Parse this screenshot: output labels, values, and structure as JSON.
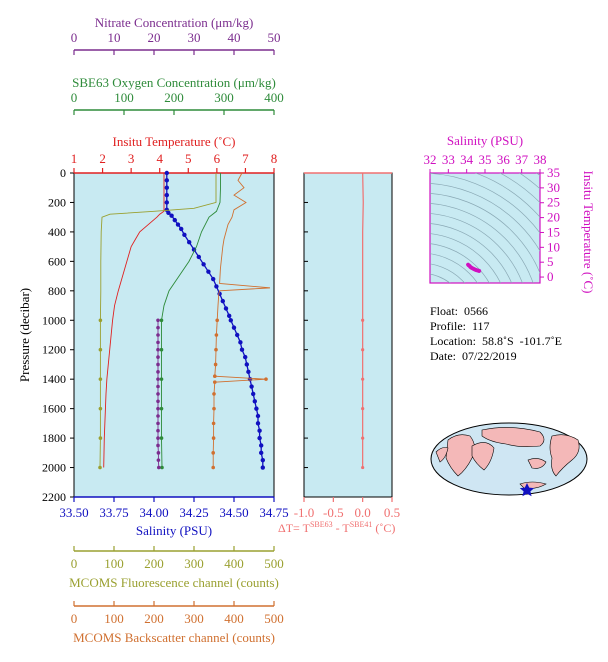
{
  "colors": {
    "nitrate": "#7b2d8e",
    "oxygen": "#2e8b3a",
    "temperature": "#e02020",
    "salinity": "#1010c0",
    "fluorescence": "#9aa030",
    "backscatter": "#d07030",
    "delta_t": "#f07070",
    "ts_axis": "#d010c0",
    "panel_bg": "#c8eaf2"
  },
  "meta": {
    "float": "Float:  0566",
    "profile": "Profile:  117",
    "location": "Location:  58.8˚S  -101.7˚E",
    "date": "Date:  07/22/2019"
  },
  "delta_label": {
    "prefix": "ΔT= T",
    "sup1": "SBE63",
    "mid": " - T",
    "sup2": "SBE41",
    "suffix": " (˚C)"
  },
  "chart_data": [
    {
      "type": "line",
      "title": "",
      "ylabel": "Pressure (decibar)",
      "ylim": [
        2200,
        0
      ],
      "y_ticks": [
        0,
        200,
        400,
        600,
        800,
        1000,
        1200,
        1400,
        1600,
        1800,
        2000,
        2200
      ],
      "axes": [
        {
          "key": "nitrate",
          "label": "Nitrate Concentration (μm/kg)",
          "range": [
            0,
            50
          ],
          "ticks": [
            0,
            10,
            20,
            30,
            40,
            50
          ],
          "position": "top"
        },
        {
          "key": "oxygen",
          "label": "SBE63 Oxygen Concentration (μm/kg)",
          "range": [
            0,
            400
          ],
          "ticks": [
            0,
            100,
            200,
            300,
            400
          ],
          "position": "top"
        },
        {
          "key": "temperature",
          "label": "Insitu Temperature (˚C)",
          "range": [
            1,
            8
          ],
          "ticks": [
            1,
            2,
            3,
            4,
            5,
            6,
            7,
            8
          ],
          "position": "top"
        },
        {
          "key": "salinity",
          "label": "Salinity (PSU)",
          "range": [
            33.5,
            34.75
          ],
          "ticks": [
            "33.50",
            "33.75",
            "34.00",
            "34.25",
            "34.50",
            "34.75"
          ],
          "position": "bottom"
        },
        {
          "key": "fluorescence",
          "label": "MCOMS Fluorescence channel (counts)",
          "range": [
            0,
            500
          ],
          "ticks": [
            0,
            100,
            200,
            300,
            400,
            500
          ],
          "position": "bottom"
        },
        {
          "key": "backscatter",
          "label": "MCOMS Backscatter channel (counts)",
          "range": [
            0,
            500
          ],
          "ticks": [
            0,
            100,
            200,
            300,
            400,
            500
          ],
          "position": "bottom"
        }
      ],
      "series": [
        {
          "axis": "salinity",
          "pressure": [
            0,
            50,
            100,
            150,
            200,
            250,
            270,
            290,
            320,
            350,
            380,
            420,
            470,
            520,
            570,
            620,
            670,
            720,
            770,
            820,
            870,
            920,
            970,
            1000,
            1050,
            1100,
            1150,
            1200,
            1250,
            1300,
            1350,
            1400,
            1450,
            1500,
            1550,
            1600,
            1650,
            1700,
            1750,
            1800,
            1850,
            1900,
            1950,
            2000
          ],
          "values": [
            34.08,
            34.08,
            34.08,
            34.08,
            34.08,
            34.08,
            34.09,
            34.11,
            34.13,
            34.15,
            34.17,
            34.19,
            34.22,
            34.25,
            34.28,
            34.31,
            34.34,
            34.37,
            34.39,
            34.41,
            34.43,
            34.45,
            34.47,
            34.48,
            34.5,
            34.52,
            34.54,
            34.55,
            34.57,
            34.58,
            34.59,
            34.6,
            34.61,
            34.62,
            34.63,
            34.64,
            34.65,
            34.65,
            34.66,
            34.66,
            34.67,
            34.67,
            34.68,
            34.68
          ]
        },
        {
          "axis": "temperature",
          "pressure": [
            0,
            100,
            200,
            260,
            280,
            300,
            350,
            400,
            450,
            500,
            600,
            700,
            800,
            900,
            1000,
            1100,
            1200,
            1300,
            1400,
            1500,
            1600,
            1700,
            1800,
            1900,
            2000
          ],
          "values": [
            4.15,
            4.15,
            4.15,
            4.15,
            4.0,
            3.9,
            3.6,
            3.3,
            3.15,
            3.0,
            2.85,
            2.7,
            2.55,
            2.42,
            2.35,
            2.3,
            2.25,
            2.2,
            2.15,
            2.12,
            2.1,
            2.08,
            2.06,
            2.05,
            2.04
          ]
        },
        {
          "axis": "oxygen",
          "pressure": [
            0,
            100,
            200,
            260,
            300,
            400,
            500,
            600,
            700,
            800,
            900,
            1000,
            1200,
            1400,
            1600,
            1800,
            2000
          ],
          "values": [
            293,
            293,
            292,
            285,
            270,
            255,
            245,
            230,
            210,
            190,
            180,
            175,
            175,
            175,
            175,
            175,
            176
          ]
        },
        {
          "axis": "nitrate",
          "pressure": [
            1000,
            1050,
            1100,
            1150,
            1200,
            1250,
            1300,
            1350,
            1400,
            1450,
            1500,
            1550,
            1600,
            1650,
            1700,
            1750,
            1800,
            1850,
            1900,
            1950,
            2000
          ],
          "values": [
            21,
            21,
            21,
            21,
            21,
            21,
            21,
            21,
            21,
            21,
            21,
            21,
            21,
            21,
            21,
            21,
            21,
            21,
            21.1,
            21.1,
            21.2
          ]
        },
        {
          "axis": "fluorescence",
          "pressure": [
            0,
            200,
            240,
            260,
            280,
            300,
            400,
            600,
            800,
            1000,
            1200,
            1400,
            1600,
            1800,
            2000
          ],
          "values": [
            355,
            355,
            300,
            200,
            90,
            70,
            68,
            67,
            67,
            66,
            66,
            66,
            66,
            66,
            65
          ]
        },
        {
          "axis": "backscatter",
          "pressure": [
            0,
            50,
            100,
            150,
            200,
            250,
            300,
            350,
            400,
            450,
            500,
            550,
            600,
            650,
            700,
            750,
            780,
            800,
            820,
            900,
            1000,
            1100,
            1200,
            1300,
            1380,
            1400,
            1420,
            1500,
            1600,
            1700,
            1800,
            1900,
            2000
          ],
          "values": [
            420,
            410,
            425,
            400,
            430,
            400,
            395,
            385,
            380,
            375,
            372,
            370,
            368,
            366,
            365,
            364,
            490,
            364,
            362,
            360,
            358,
            356,
            355,
            354,
            352,
            480,
            352,
            350,
            350,
            349,
            349,
            348,
            348
          ]
        },
        {
          "axis": "delta_t",
          "pressure": [
            0,
            200,
            400,
            600,
            800,
            1000,
            1200,
            1400,
            1600,
            1800,
            2000
          ],
          "values": [
            0.0,
            0.01,
            0.0,
            0.0,
            0.0,
            0.0,
            0.0,
            0.0,
            0.0,
            0.0,
            0.0
          ]
        }
      ],
      "markers_every": 50
    },
    {
      "type": "line",
      "title": "",
      "xlabel": "ΔT= T SBE63 - T SBE41 (˚C)",
      "xlim": [
        -1.0,
        0.5
      ],
      "x_ticks": [
        "-1.0",
        "-0.5",
        "0.0",
        "0.5"
      ],
      "ylim": [
        2200,
        0
      ]
    },
    {
      "type": "scatter",
      "title": "",
      "xlabel": "Salinity (PSU)",
      "ylabel": "Insitu Temperature (˚C)",
      "xlim": [
        32,
        38
      ],
      "ylim": [
        -2,
        35
      ],
      "x_ticks": [
        32,
        33,
        34,
        35,
        36,
        37,
        38
      ],
      "y_ticks": [
        0,
        5,
        10,
        15,
        20,
        25,
        30,
        35
      ],
      "points": {
        "salinity": [
          34.08,
          34.1,
          34.15,
          34.2,
          34.3,
          34.4,
          34.5,
          34.6,
          34.68
        ],
        "temperature": [
          4.15,
          4.0,
          3.8,
          3.4,
          3.0,
          2.7,
          2.4,
          2.2,
          2.05
        ]
      }
    }
  ]
}
